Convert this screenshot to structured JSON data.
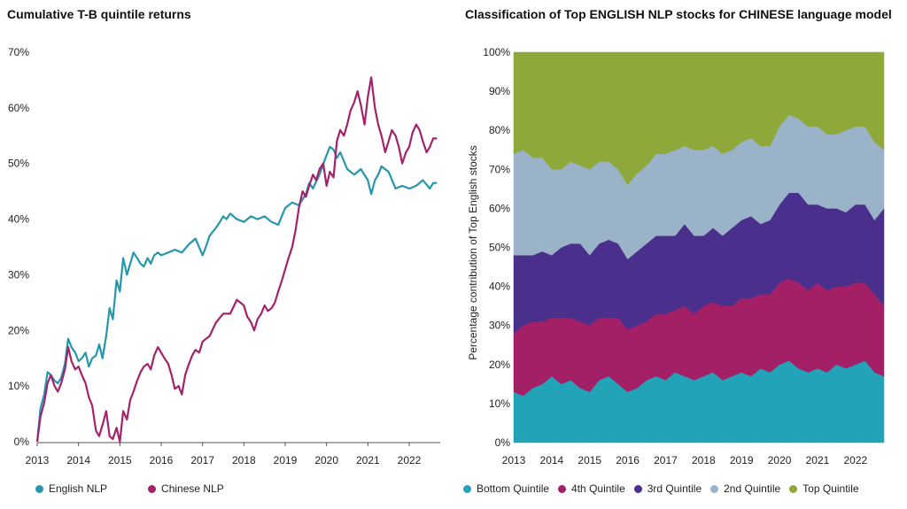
{
  "chart_data": [
    {
      "type": "line",
      "title": "Cumulative T-B quintile returns",
      "xlabel": "",
      "ylabel": "",
      "x_ticks": [
        "2013",
        "2014",
        "2015",
        "2016",
        "2017",
        "2018",
        "2019",
        "2020",
        "2021",
        "2022"
      ],
      "y_ticks": [
        "0%",
        "10%",
        "20%",
        "30%",
        "40%",
        "50%",
        "60%",
        "70%"
      ],
      "ylim": [
        0,
        70
      ],
      "xlim": [
        2013.0,
        2022.75
      ],
      "grid": false,
      "legend_position": "bottom",
      "series": [
        {
          "name": "English NLP",
          "color": "#2596ad",
          "x": [
            2013.0,
            2013.08,
            2013.17,
            2013.25,
            2013.33,
            2013.42,
            2013.5,
            2013.58,
            2013.67,
            2013.75,
            2013.83,
            2013.92,
            2014.0,
            2014.08,
            2014.17,
            2014.25,
            2014.33,
            2014.42,
            2014.5,
            2014.58,
            2014.67,
            2014.75,
            2014.83,
            2014.92,
            2015.0,
            2015.08,
            2015.17,
            2015.25,
            2015.33,
            2015.42,
            2015.5,
            2015.58,
            2015.67,
            2015.75,
            2015.83,
            2015.92,
            2016.0,
            2016.17,
            2016.33,
            2016.5,
            2016.67,
            2016.83,
            2017.0,
            2017.08,
            2017.17,
            2017.33,
            2017.42,
            2017.5,
            2017.58,
            2017.67,
            2017.83,
            2018.0,
            2018.17,
            2018.33,
            2018.5,
            2018.67,
            2018.83,
            2019.0,
            2019.17,
            2019.33,
            2019.5,
            2019.58,
            2019.67,
            2019.83,
            2020.0,
            2020.08,
            2020.17,
            2020.25,
            2020.33,
            2020.5,
            2020.67,
            2020.83,
            2021.0,
            2021.08,
            2021.17,
            2021.25,
            2021.33,
            2021.5,
            2021.67,
            2021.83,
            2022.0,
            2022.17,
            2022.33,
            2022.5,
            2022.58,
            2022.67
          ],
          "values": [
            0.0,
            6.0,
            8.5,
            12.5,
            12.0,
            11.0,
            10.5,
            11.5,
            14.0,
            18.5,
            17.0,
            16.0,
            14.5,
            15.0,
            16.0,
            13.5,
            15.0,
            15.5,
            17.5,
            15.0,
            19.0,
            24.0,
            22.0,
            29.0,
            27.0,
            33.0,
            30.0,
            32.0,
            34.0,
            33.0,
            32.0,
            31.5,
            33.0,
            32.0,
            33.5,
            34.0,
            33.5,
            34.0,
            34.5,
            34.0,
            35.5,
            36.5,
            33.5,
            35.0,
            37.0,
            38.5,
            39.5,
            40.5,
            40.0,
            41.0,
            40.0,
            39.5,
            40.5,
            40.0,
            40.5,
            39.5,
            39.0,
            42.0,
            43.0,
            42.5,
            44.5,
            46.5,
            45.5,
            48.0,
            51.5,
            53.0,
            52.5,
            51.0,
            52.0,
            49.0,
            48.0,
            49.0,
            47.0,
            44.5,
            47.0,
            48.0,
            49.5,
            48.5,
            45.5,
            46.0,
            45.5,
            46.0,
            47.0,
            45.5,
            46.5,
            46.5
          ]
        },
        {
          "name": "Chinese NLP",
          "color": "#a3226b",
          "x": [
            2013.0,
            2013.08,
            2013.17,
            2013.25,
            2013.33,
            2013.42,
            2013.5,
            2013.58,
            2013.67,
            2013.75,
            2013.83,
            2013.92,
            2014.0,
            2014.08,
            2014.17,
            2014.25,
            2014.33,
            2014.42,
            2014.5,
            2014.58,
            2014.67,
            2014.75,
            2014.83,
            2014.92,
            2015.0,
            2015.08,
            2015.17,
            2015.25,
            2015.33,
            2015.42,
            2015.5,
            2015.58,
            2015.67,
            2015.75,
            2015.83,
            2015.92,
            2016.0,
            2016.08,
            2016.17,
            2016.25,
            2016.33,
            2016.42,
            2016.5,
            2016.58,
            2016.67,
            2016.75,
            2016.83,
            2016.92,
            2017.0,
            2017.17,
            2017.33,
            2017.5,
            2017.67,
            2017.83,
            2018.0,
            2018.08,
            2018.17,
            2018.25,
            2018.33,
            2018.42,
            2018.5,
            2018.58,
            2018.67,
            2018.75,
            2018.83,
            2018.92,
            2019.0,
            2019.08,
            2019.17,
            2019.25,
            2019.33,
            2019.42,
            2019.5,
            2019.58,
            2019.67,
            2019.75,
            2019.83,
            2019.92,
            2020.0,
            2020.08,
            2020.17,
            2020.25,
            2020.33,
            2020.42,
            2020.5,
            2020.58,
            2020.67,
            2020.75,
            2020.83,
            2020.92,
            2021.0,
            2021.08,
            2021.17,
            2021.25,
            2021.33,
            2021.42,
            2021.5,
            2021.58,
            2021.67,
            2021.75,
            2021.83,
            2021.92,
            2022.0,
            2022.08,
            2022.17,
            2022.25,
            2022.33,
            2022.42,
            2022.5,
            2022.58,
            2022.67
          ],
          "values": [
            0.0,
            4.5,
            7.0,
            10.5,
            12.0,
            10.0,
            9.0,
            10.5,
            13.0,
            17.0,
            14.5,
            13.0,
            13.5,
            12.0,
            10.5,
            8.0,
            6.5,
            2.0,
            1.0,
            3.0,
            5.5,
            1.0,
            0.5,
            2.5,
            0.0,
            5.5,
            4.0,
            7.5,
            9.0,
            11.0,
            12.5,
            13.5,
            14.0,
            13.0,
            15.5,
            17.0,
            16.0,
            15.0,
            14.0,
            12.0,
            9.5,
            10.0,
            8.5,
            12.0,
            14.0,
            15.5,
            16.5,
            16.0,
            18.0,
            19.0,
            21.5,
            23.0,
            23.0,
            25.5,
            24.5,
            22.5,
            21.5,
            20.0,
            22.0,
            23.0,
            24.5,
            23.5,
            24.0,
            25.0,
            27.0,
            29.0,
            31.0,
            33.0,
            35.0,
            38.0,
            42.0,
            45.0,
            44.0,
            46.0,
            48.0,
            47.0,
            49.0,
            50.0,
            46.0,
            48.5,
            47.5,
            54.0,
            56.0,
            55.0,
            57.0,
            59.5,
            61.0,
            63.0,
            60.5,
            57.0,
            62.0,
            65.5,
            60.0,
            57.0,
            55.0,
            52.0,
            54.0,
            56.0,
            55.0,
            53.0,
            50.0,
            52.0,
            53.0,
            55.5,
            57.0,
            56.0,
            54.0,
            52.0,
            53.0,
            54.5,
            54.5
          ]
        }
      ]
    },
    {
      "type": "area",
      "stacked": true,
      "title": "Classification of Top ENGLISH NLP stocks for CHINESE language model",
      "xlabel": "",
      "ylabel": "Percentage contribution of Top English stocks",
      "x_ticks": [
        "2013",
        "2014",
        "2015",
        "2016",
        "2017",
        "2018",
        "2019",
        "2020",
        "2021",
        "2022"
      ],
      "y_ticks": [
        "0%",
        "10%",
        "20%",
        "30%",
        "40%",
        "50%",
        "60%",
        "70%",
        "80%",
        "90%",
        "100%"
      ],
      "ylim": [
        0,
        100
      ],
      "xlim": [
        2013.0,
        2022.75
      ],
      "legend_position": "bottom",
      "x": [
        2013.0,
        2013.25,
        2013.5,
        2013.75,
        2014.0,
        2014.25,
        2014.5,
        2014.75,
        2015.0,
        2015.25,
        2015.5,
        2015.75,
        2016.0,
        2016.25,
        2016.5,
        2016.75,
        2017.0,
        2017.25,
        2017.5,
        2017.75,
        2018.0,
        2018.25,
        2018.5,
        2018.75,
        2019.0,
        2019.25,
        2019.5,
        2019.75,
        2020.0,
        2020.25,
        2020.5,
        2020.75,
        2021.0,
        2021.25,
        2021.5,
        2021.75,
        2022.0,
        2022.25,
        2022.5,
        2022.75
      ],
      "series": [
        {
          "name": "Bottom Quintile",
          "color": "#23a3b8",
          "values": [
            13,
            12,
            14,
            15,
            17,
            15,
            16,
            14,
            13,
            16,
            17,
            15,
            13,
            14,
            16,
            17,
            16,
            18,
            17,
            16,
            17,
            18,
            16,
            17,
            18,
            17,
            19,
            18,
            20,
            21,
            19,
            18,
            19,
            18,
            20,
            19,
            20,
            21,
            18,
            17
          ]
        },
        {
          "name": "4th Quintile",
          "color": "#a31f66",
          "values": [
            15,
            18,
            17,
            16,
            15,
            17,
            16,
            17,
            17,
            16,
            15,
            17,
            16,
            16,
            15,
            16,
            17,
            16,
            18,
            17,
            18,
            18,
            19,
            18,
            19,
            20,
            19,
            20,
            21,
            21,
            22,
            21,
            22,
            21,
            20,
            21,
            21,
            20,
            20,
            18
          ]
        },
        {
          "name": "3rd Quintile",
          "color": "#4a2f8c",
          "values": [
            20,
            18,
            17,
            18,
            16,
            18,
            19,
            20,
            18,
            19,
            20,
            19,
            18,
            19,
            20,
            20,
            20,
            19,
            21,
            20,
            18,
            19,
            18,
            20,
            20,
            21,
            18,
            19,
            20,
            22,
            23,
            22,
            20,
            21,
            20,
            19,
            20,
            20,
            19,
            25
          ]
        },
        {
          "name": "2nd Quintile",
          "color": "#9ab3c9",
          "values": [
            26,
            27,
            25,
            24,
            22,
            20,
            21,
            20,
            22,
            21,
            20,
            19,
            19,
            20,
            20,
            21,
            21,
            22,
            20,
            22,
            22,
            21,
            21,
            20,
            20,
            20,
            20,
            19,
            20,
            20,
            19,
            20,
            20,
            19,
            19,
            21,
            20,
            20,
            20,
            15
          ]
        },
        {
          "name": "Top Quintile",
          "color": "#8ea83a",
          "values": [
            26,
            25,
            27,
            27,
            30,
            30,
            28,
            29,
            30,
            28,
            28,
            30,
            34,
            31,
            29,
            26,
            26,
            25,
            24,
            25,
            25,
            24,
            26,
            25,
            23,
            22,
            24,
            24,
            19,
            16,
            17,
            19,
            19,
            21,
            21,
            20,
            19,
            19,
            23,
            25
          ]
        }
      ]
    }
  ]
}
